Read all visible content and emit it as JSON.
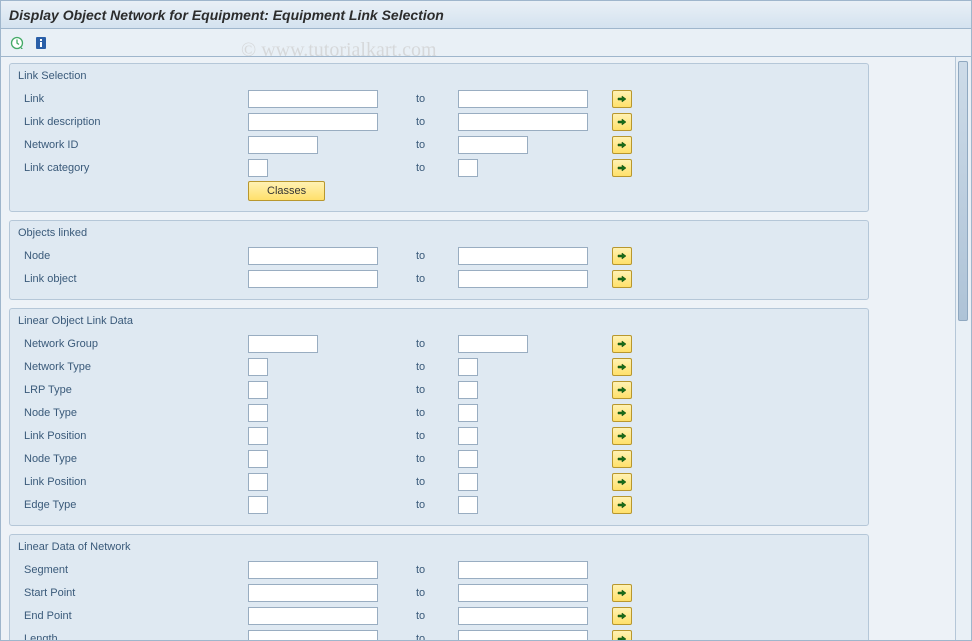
{
  "title": "Display Object Network for Equipment: Equipment Link Selection",
  "watermark": "© www.tutorialkart.com",
  "toolbar": {
    "execute_tooltip": "Execute",
    "info_tooltip": "Information"
  },
  "to_label": "to",
  "classes_btn": "Classes",
  "groups": [
    {
      "title": "Link Selection",
      "rows": [
        {
          "label": "Link",
          "from_w": "w-md",
          "to_w": "w-md",
          "arrow": true
        },
        {
          "label": "Link description",
          "from_w": "w-md",
          "to_w": "w-md",
          "arrow": true
        },
        {
          "label": "Network ID",
          "from_w": "w-sm",
          "to_w": "w-sm",
          "arrow": true
        },
        {
          "label": "Link category",
          "from_w": "w-xs",
          "to_w": "w-xs",
          "arrow": true
        }
      ],
      "has_classes_btn": true
    },
    {
      "title": "Objects linked",
      "rows": [
        {
          "label": "Node",
          "from_w": "w-md",
          "to_w": "w-md",
          "arrow": true
        },
        {
          "label": "Link object",
          "from_w": "w-md",
          "to_w": "w-md",
          "arrow": true
        }
      ]
    },
    {
      "title": "Linear Object Link Data",
      "rows": [
        {
          "label": "Network Group",
          "from_w": "w-sm",
          "to_w": "w-sm",
          "arrow": true
        },
        {
          "label": "Network Type",
          "from_w": "w-xs",
          "to_w": "w-xs",
          "arrow": true
        },
        {
          "label": "LRP Type",
          "from_w": "w-xs",
          "to_w": "w-xs",
          "arrow": true
        },
        {
          "label": "Node Type",
          "from_w": "w-xs",
          "to_w": "w-xs",
          "arrow": true
        },
        {
          "label": "Link Position",
          "from_w": "w-xs",
          "to_w": "w-xs",
          "arrow": true
        },
        {
          "label": "Node Type",
          "from_w": "w-xs",
          "to_w": "w-xs",
          "arrow": true
        },
        {
          "label": "Link Position",
          "from_w": "w-xs",
          "to_w": "w-xs",
          "arrow": true
        },
        {
          "label": "Edge Type",
          "from_w": "w-xs",
          "to_w": "w-xs",
          "arrow": true
        }
      ]
    },
    {
      "title": "Linear Data of Network",
      "rows": [
        {
          "label": "Segment",
          "from_w": "w-md",
          "to_w": "w-md",
          "arrow": false
        },
        {
          "label": "Start Point",
          "from_w": "w-md",
          "to_w": "w-md",
          "arrow": true
        },
        {
          "label": "End Point",
          "from_w": "w-md",
          "to_w": "w-md",
          "arrow": true
        },
        {
          "label": "Length",
          "from_w": "w-md",
          "to_w": "w-md",
          "arrow": true
        }
      ]
    }
  ],
  "colors": {
    "arrow_fill": "#1a6d1a"
  }
}
